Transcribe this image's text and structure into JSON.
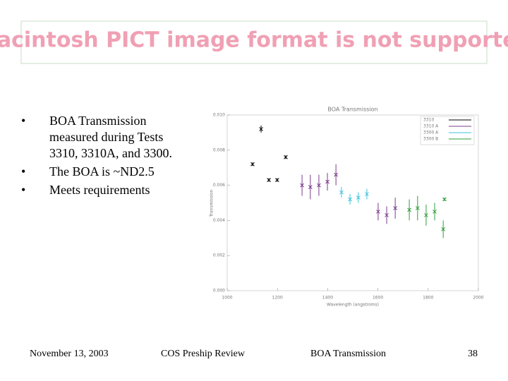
{
  "banner": "Macintosh PICT image format is not supported",
  "bullets": [
    "BOA Transmission measured during Tests 3310, 3310A, and 3300.",
    "The BOA is ~ND2.5",
    "Meets requirements"
  ],
  "chart_data": {
    "type": "scatter",
    "title": "BOA Transmission",
    "x_label": "Wavelength (angstroms)",
    "y_label": "Transmission",
    "xlim": [
      1000,
      2000
    ],
    "ylim": [
      0,
      0.01
    ],
    "xticks": [
      1000,
      1200,
      1400,
      1600,
      1800,
      2000
    ],
    "yticks": [
      {
        "value": 0,
        "label": "0.000"
      },
      {
        "value": 0.002,
        "label": "0.002"
      },
      {
        "value": 0.004,
        "label": "0.004"
      },
      {
        "value": 0.006,
        "label": "0.006"
      },
      {
        "value": 0.008,
        "label": "0.008"
      },
      {
        "value": 0.01,
        "label": "0.010"
      }
    ],
    "legend": "upper right",
    "series": [
      {
        "name": "3310",
        "color": "#000000",
        "x": [
          1135,
          1101,
          1166,
          1199,
          1233
        ],
        "values": [
          0.0092,
          0.0072,
          0.0063,
          0.0063,
          0.0076
        ],
        "errors": [
          0.0002,
          0.0001,
          0.0001,
          0.0001,
          0.0001
        ]
      },
      {
        "name": "3310 A",
        "color": "#7a3c8c",
        "x": [
          1298,
          1331,
          1365,
          1399,
          1433,
          1601,
          1635,
          1669
        ],
        "values": [
          0.006,
          0.0059,
          0.006,
          0.0062,
          0.0066,
          0.0045,
          0.0043,
          0.0047
        ],
        "errors": [
          0.0006,
          0.0007,
          0.0006,
          0.0005,
          0.0006,
          0.0005,
          0.0005,
          0.0006
        ]
      },
      {
        "name": "3300 A",
        "color": "#3ec4dc",
        "x": [
          1455,
          1489,
          1522,
          1556
        ],
        "values": [
          0.0056,
          0.0052,
          0.0053,
          0.0055
        ],
        "errors": [
          0.0003,
          0.0003,
          0.0003,
          0.0003
        ]
      },
      {
        "name": "3300 B",
        "color": "#2e9e3a",
        "x": [
          1725,
          1758,
          1792,
          1826,
          1860,
          1865
        ],
        "values": [
          0.0046,
          0.0047,
          0.0043,
          0.0045,
          0.0035,
          0.0052
        ],
        "errors": [
          0.0006,
          0.0007,
          0.0006,
          0.0005,
          0.0005,
          0.0001
        ]
      }
    ]
  },
  "footer": {
    "date": "November 13, 2003",
    "review": "COS Preship Review",
    "topic": "BOA Transmission",
    "page": "38"
  }
}
